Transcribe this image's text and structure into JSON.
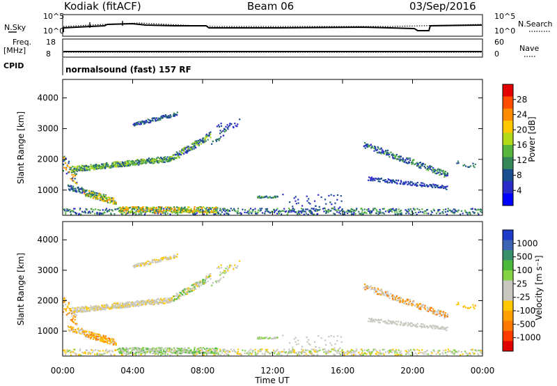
{
  "header": {
    "station": "Kodiak (fitACF)",
    "beam": "Beam 06",
    "date": "03/Sep/2016"
  },
  "params": {
    "nsky_label": "N.Sky",
    "nsearch_label": "N.Search",
    "freq_label": "Freq.",
    "freq_unit": "[MHz]",
    "nave_label": "Nave",
    "cpid_label": "CPID",
    "nsky_ticks": [
      "10^5",
      "10^0"
    ],
    "nsearch_ticks": [
      "10^5",
      "10^0"
    ],
    "freq_ticks": [
      "18",
      "8"
    ],
    "nave_ticks": [
      "60",
      "0"
    ],
    "cpid_text": "normalsound (fast) 157 RF"
  },
  "chart_data": [
    {
      "type": "heatmap",
      "name": "Power",
      "ylabel": "Slant Range [km]",
      "xlabel": "",
      "x_ticks": [
        "00:00",
        "04:00",
        "08:00",
        "12:00",
        "16:00",
        "20:00",
        "00:00"
      ],
      "y_ticks": [
        "1000",
        "2000",
        "3000",
        "4000"
      ],
      "ylim": [
        180,
        4600
      ],
      "xlim_hours": [
        0,
        24
      ],
      "colorbar": {
        "label": "Power [dB]",
        "ticks": [
          "28",
          "24",
          "20",
          "16",
          "12",
          "8",
          "4"
        ],
        "colors": [
          "#e40000",
          "#ff4c00",
          "#ff8c00",
          "#ffc800",
          "#b4d81a",
          "#58b53e",
          "#35875a",
          "#1a4e90",
          "#2b2bc8",
          "#0000ff"
        ]
      }
    },
    {
      "type": "heatmap",
      "name": "Velocity",
      "ylabel": "Slant Range [km]",
      "xlabel": "Time UT",
      "x_ticks": [
        "00:00",
        "04:00",
        "08:00",
        "12:00",
        "16:00",
        "20:00",
        "00:00"
      ],
      "y_ticks": [
        "1000",
        "2000",
        "3000",
        "4000"
      ],
      "ylim": [
        180,
        4600
      ],
      "xlim_hours": [
        0,
        24
      ],
      "colorbar": {
        "label": "Velocity [m s⁻¹]",
        "ticks": [
          "1000",
          "500",
          "100",
          "25",
          "-25",
          "-100",
          "-500",
          "-1000"
        ],
        "colors": [
          "#1e3cc8",
          "#3c64b4",
          "#38906a",
          "#4cb83c",
          "#86d446",
          "#c8c8c0",
          "#c8c8c0",
          "#ffc800",
          "#ffa000",
          "#ff7800",
          "#ff3c00",
          "#e00000"
        ]
      }
    }
  ]
}
